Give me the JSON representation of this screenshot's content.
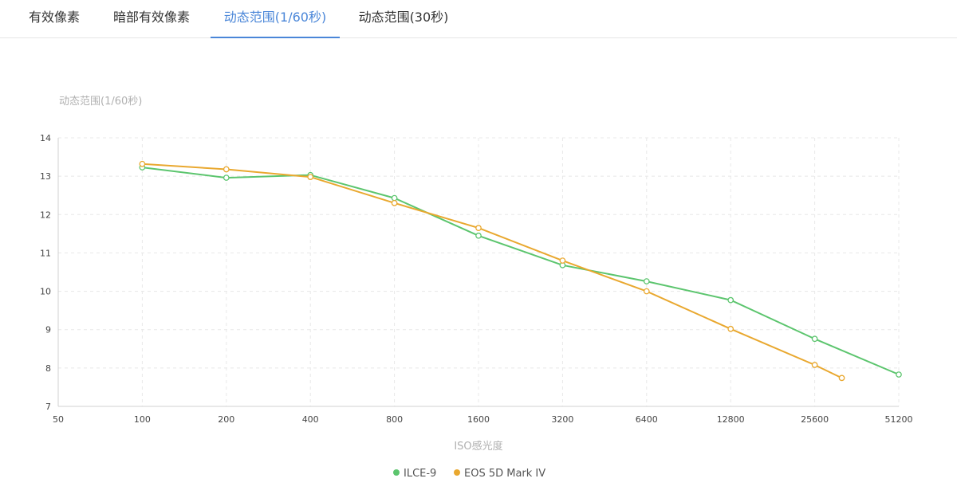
{
  "tabs": [
    {
      "label": "有效像素",
      "active": false
    },
    {
      "label": "暗部有效像素",
      "active": false
    },
    {
      "label": "动态范围(1/60秒)",
      "active": true
    },
    {
      "label": "动态范围(30秒)",
      "active": false
    }
  ],
  "colors": {
    "accent": "#4a86d8",
    "ilce9": "#5cc56e",
    "eos5d": "#e9a82f",
    "grid": "#e8e8e8"
  },
  "chart_data": {
    "type": "line",
    "ylabel": "动态范围(1/60秒)",
    "xlabel": "ISO感光度",
    "x_ticks": [
      "50",
      "100",
      "200",
      "400",
      "800",
      "1600",
      "3200",
      "6400",
      "12800",
      "25600",
      "51200"
    ],
    "x_scale": "log2",
    "xlim": [
      50,
      51200
    ],
    "ylim": [
      7,
      14
    ],
    "y_ticks": [
      "7",
      "8",
      "9",
      "10",
      "11",
      "12",
      "13",
      "14"
    ],
    "grid": true,
    "legend_position": "bottom-center",
    "series": [
      {
        "name": "ILCE-9",
        "color": "#5cc56e",
        "points": [
          [
            100,
            13.23
          ],
          [
            200,
            12.96
          ],
          [
            400,
            13.03
          ],
          [
            800,
            12.43
          ],
          [
            1600,
            11.45
          ],
          [
            3200,
            10.68
          ],
          [
            6400,
            10.26
          ],
          [
            12800,
            9.77
          ],
          [
            25600,
            8.76
          ],
          [
            51200,
            7.83
          ]
        ]
      },
      {
        "name": "EOS 5D Mark IV",
        "color": "#e9a82f",
        "points": [
          [
            100,
            13.32
          ],
          [
            200,
            13.18
          ],
          [
            400,
            12.98
          ],
          [
            800,
            12.3
          ],
          [
            1600,
            11.65
          ],
          [
            3200,
            10.8
          ],
          [
            6400,
            10.0
          ],
          [
            12800,
            9.02
          ],
          [
            25600,
            8.08
          ],
          [
            32000,
            7.74
          ]
        ]
      }
    ]
  }
}
